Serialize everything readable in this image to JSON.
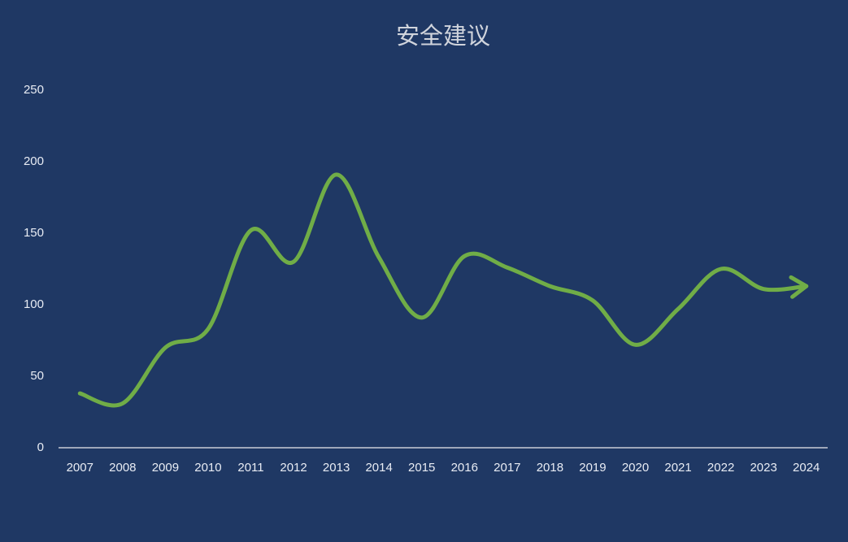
{
  "chart_data": {
    "type": "line",
    "title": "安全建议",
    "categories": [
      "2007",
      "2008",
      "2009",
      "2010",
      "2011",
      "2012",
      "2013",
      "2014",
      "2015",
      "2016",
      "2017",
      "2018",
      "2019",
      "2020",
      "2021",
      "2022",
      "2023",
      "2024"
    ],
    "series": [
      {
        "color": "#70ad47",
        "values": [
          38,
          31,
          70,
          83,
          152,
          130,
          191,
          133,
          91,
          134,
          126,
          113,
          103,
          72,
          97,
          125,
          111,
          113
        ]
      }
    ],
    "ylim": [
      0,
      250
    ],
    "yticks": [
      0,
      50,
      100,
      150,
      200,
      250
    ],
    "grid": false,
    "smooth": true,
    "end_arrow": true
  }
}
